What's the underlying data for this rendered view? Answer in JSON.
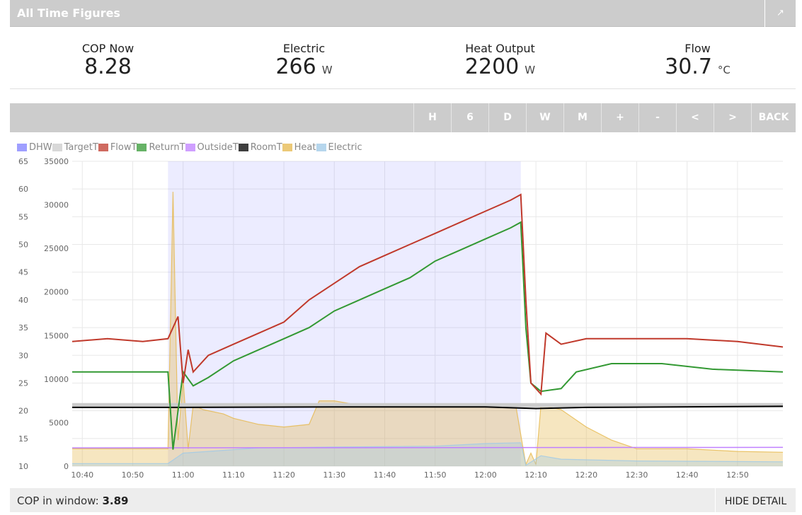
{
  "header": {
    "title": "All Time Figures",
    "export_icon": "export-icon"
  },
  "stats": [
    {
      "label": "COP Now",
      "value": "8.28",
      "unit": ""
    },
    {
      "label": "Electric",
      "value": "266",
      "unit": "W"
    },
    {
      "label": "Heat Output",
      "value": "2200",
      "unit": "W"
    },
    {
      "label": "Flow",
      "value": "30.7",
      "unit": "°C"
    }
  ],
  "toolbar": [
    "H",
    "6",
    "D",
    "W",
    "M",
    "+",
    "-",
    "<",
    ">",
    "BACK"
  ],
  "footer": {
    "cop_label": "COP in window:",
    "cop_value": "3.89",
    "hide_detail": "HIDE DETAIL"
  },
  "colors": {
    "DHW": "#8080ff",
    "TargetT": "#cccccc",
    "FlowT": "#c0392b",
    "ReturnT": "#339933",
    "OutsideT": "#c080ff",
    "RoomT": "#000000",
    "Heat": "#e6b84a",
    "Electric": "#9ec9e8"
  },
  "chart_data": {
    "type": "line",
    "legend": [
      "DHW",
      "TargetT",
      "FlowT",
      "ReturnT",
      "OutsideT",
      "RoomT",
      "Heat",
      "Electric"
    ],
    "x_ticks": [
      "10:40",
      "10:50",
      "11:00",
      "11:10",
      "11:20",
      "11:30",
      "11:40",
      "11:50",
      "12:00",
      "12:10",
      "12:20",
      "12:30",
      "12:40",
      "12:50"
    ],
    "x_range": [
      "10:38",
      "12:59"
    ],
    "left_axis": {
      "unit": "°C",
      "ylim": [
        10,
        65
      ],
      "ticks": [
        10,
        15,
        20,
        25,
        30,
        35,
        40,
        45,
        50,
        55,
        60,
        65
      ]
    },
    "right_axis": {
      "unit": "W",
      "ylim": [
        0,
        35000
      ],
      "ticks": [
        0,
        5000,
        10000,
        15000,
        20000,
        25000,
        30000,
        35000
      ]
    },
    "dhw_period": [
      "10:57",
      "12:07"
    ],
    "series": [
      {
        "name": "FlowT",
        "axis": "left",
        "points": [
          [
            "10:38",
            32.5
          ],
          [
            "10:45",
            33
          ],
          [
            "10:52",
            32.5
          ],
          [
            "10:57",
            33
          ],
          [
            "10:59",
            37
          ],
          [
            "11:00",
            25
          ],
          [
            "11:01",
            31
          ],
          [
            "11:02",
            27
          ],
          [
            "11:05",
            30
          ],
          [
            "11:10",
            32
          ],
          [
            "11:15",
            34
          ],
          [
            "11:20",
            36
          ],
          [
            "11:25",
            40
          ],
          [
            "11:30",
            43
          ],
          [
            "11:35",
            46
          ],
          [
            "11:40",
            48
          ],
          [
            "11:45",
            50
          ],
          [
            "11:50",
            52
          ],
          [
            "11:55",
            54
          ],
          [
            "12:00",
            56
          ],
          [
            "12:05",
            58
          ],
          [
            "12:07",
            59
          ],
          [
            "12:08",
            40
          ],
          [
            "12:09",
            25
          ],
          [
            "12:11",
            23
          ],
          [
            "12:12",
            34
          ],
          [
            "12:15",
            32
          ],
          [
            "12:20",
            33
          ],
          [
            "12:30",
            33
          ],
          [
            "12:40",
            33
          ],
          [
            "12:50",
            32.5
          ],
          [
            "12:59",
            31.5
          ]
        ]
      },
      {
        "name": "ReturnT",
        "axis": "left",
        "points": [
          [
            "10:38",
            27
          ],
          [
            "10:57",
            27
          ],
          [
            "10:58",
            13
          ],
          [
            "11:00",
            27
          ],
          [
            "11:02",
            24.5
          ],
          [
            "11:05",
            26
          ],
          [
            "11:10",
            29
          ],
          [
            "11:15",
            31
          ],
          [
            "11:20",
            33
          ],
          [
            "11:25",
            35
          ],
          [
            "11:30",
            38
          ],
          [
            "11:35",
            40
          ],
          [
            "11:40",
            42
          ],
          [
            "11:45",
            44
          ],
          [
            "11:50",
            47
          ],
          [
            "11:55",
            49
          ],
          [
            "12:00",
            51
          ],
          [
            "12:05",
            53
          ],
          [
            "12:07",
            54
          ],
          [
            "12:08",
            35
          ],
          [
            "12:09",
            25
          ],
          [
            "12:11",
            23.5
          ],
          [
            "12:15",
            24
          ],
          [
            "12:18",
            27
          ],
          [
            "12:25",
            28.5
          ],
          [
            "12:35",
            28.5
          ],
          [
            "12:45",
            27.5
          ],
          [
            "12:59",
            27
          ]
        ]
      },
      {
        "name": "RoomT",
        "axis": "left",
        "points": [
          [
            "10:38",
            20.6
          ],
          [
            "11:00",
            20.6
          ],
          [
            "11:30",
            20.7
          ],
          [
            "12:00",
            20.7
          ],
          [
            "12:10",
            20.4
          ],
          [
            "12:20",
            20.6
          ],
          [
            "12:59",
            20.8
          ]
        ]
      },
      {
        "name": "TargetT",
        "axis": "left",
        "points": [
          [
            "10:38",
            21
          ],
          [
            "12:59",
            21
          ]
        ]
      },
      {
        "name": "OutsideT",
        "axis": "left",
        "points": [
          [
            "10:38",
            13.3
          ],
          [
            "12:59",
            13.4
          ]
        ]
      },
      {
        "name": "Heat",
        "axis": "right",
        "points": [
          [
            "10:38",
            2000
          ],
          [
            "10:57",
            2000
          ],
          [
            "10:58",
            31500
          ],
          [
            "10:59",
            3000
          ],
          [
            "11:00",
            10000
          ],
          [
            "11:01",
            2000
          ],
          [
            "11:02",
            7000
          ],
          [
            "11:04",
            6500
          ],
          [
            "11:08",
            6000
          ],
          [
            "11:10",
            5500
          ],
          [
            "11:15",
            4800
          ],
          [
            "11:20",
            4500
          ],
          [
            "11:25",
            4800
          ],
          [
            "11:27",
            7500
          ],
          [
            "11:30",
            7500
          ],
          [
            "11:35",
            7000
          ],
          [
            "11:40",
            6800
          ],
          [
            "11:45",
            7000
          ],
          [
            "11:50",
            7000
          ],
          [
            "11:55",
            6800
          ],
          [
            "12:00",
            6800
          ],
          [
            "12:06",
            7000
          ],
          [
            "12:08",
            200
          ],
          [
            "12:09",
            1500
          ],
          [
            "12:10",
            200
          ],
          [
            "12:11",
            7000
          ],
          [
            "12:15",
            6500
          ],
          [
            "12:20",
            4500
          ],
          [
            "12:25",
            3000
          ],
          [
            "12:30",
            2000
          ],
          [
            "12:40",
            2000
          ],
          [
            "12:50",
            1700
          ],
          [
            "12:59",
            1600
          ]
        ]
      },
      {
        "name": "Electric",
        "axis": "right",
        "points": [
          [
            "10:38",
            300
          ],
          [
            "10:57",
            300
          ],
          [
            "10:58",
            700
          ],
          [
            "11:00",
            1500
          ],
          [
            "11:05",
            1700
          ],
          [
            "11:15",
            2100
          ],
          [
            "11:30",
            2200
          ],
          [
            "11:50",
            2300
          ],
          [
            "12:00",
            2600
          ],
          [
            "12:07",
            2700
          ],
          [
            "12:08",
            100
          ],
          [
            "12:11",
            1200
          ],
          [
            "12:15",
            800
          ],
          [
            "12:30",
            600
          ],
          [
            "12:59",
            500
          ]
        ]
      }
    ]
  }
}
